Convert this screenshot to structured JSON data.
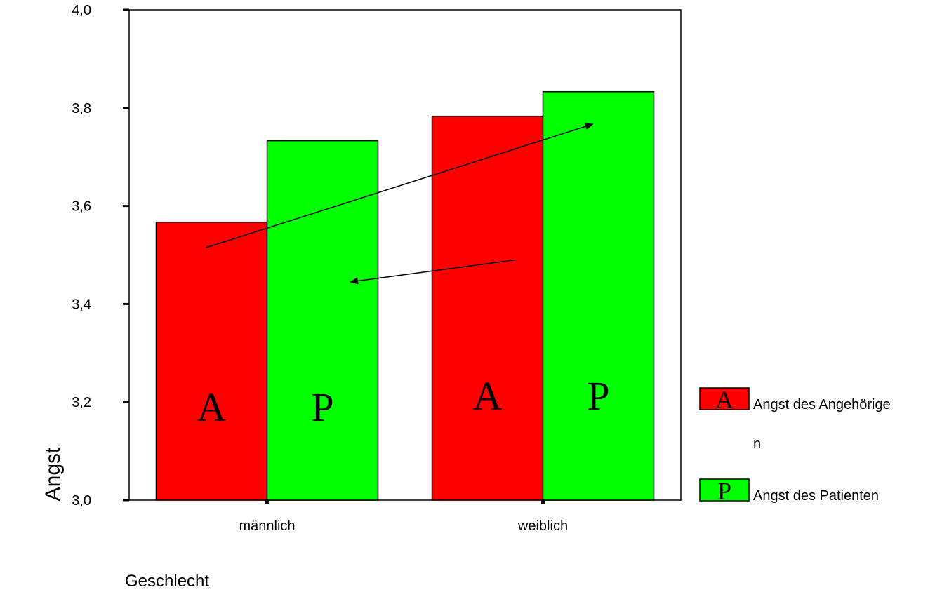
{
  "chart_data": {
    "type": "bar",
    "categories": [
      "männlich",
      "weiblich"
    ],
    "series": [
      {
        "name": "Angst des Angehörigen",
        "marker": "A",
        "color": "#ff0000",
        "values": [
          3.567,
          3.783
        ]
      },
      {
        "name": "Angst des Patienten",
        "marker": "P",
        "color": "#00ff00",
        "values": [
          3.733,
          3.833
        ]
      }
    ],
    "xlabel": "Geschlecht",
    "ylabel": "Angst",
    "ylim": [
      3.0,
      4.0
    ],
    "yticks": [
      "3,0",
      "3,2",
      "3,4",
      "3,6",
      "3,8",
      "4,0"
    ],
    "ytick_values": [
      3.0,
      3.2,
      3.4,
      3.6,
      3.8,
      4.0
    ],
    "grid": false,
    "legend_position": "right",
    "legend_lines": [
      [
        "Angst des Angehörige",
        "n"
      ],
      [
        "Angst des Patienten"
      ]
    ],
    "annotations": [
      {
        "type": "arrow",
        "from": {
          "category": 0,
          "value": 3.515
        },
        "to": {
          "category": 1,
          "value": 3.767
        },
        "from_offset": -0.55,
        "to_offset": 0.45
      },
      {
        "type": "arrow",
        "from": {
          "category": 1,
          "value": 3.49
        },
        "to": {
          "category": 0,
          "value": 3.445
        },
        "from_offset": -0.25,
        "to_offset": 0.75
      }
    ]
  }
}
